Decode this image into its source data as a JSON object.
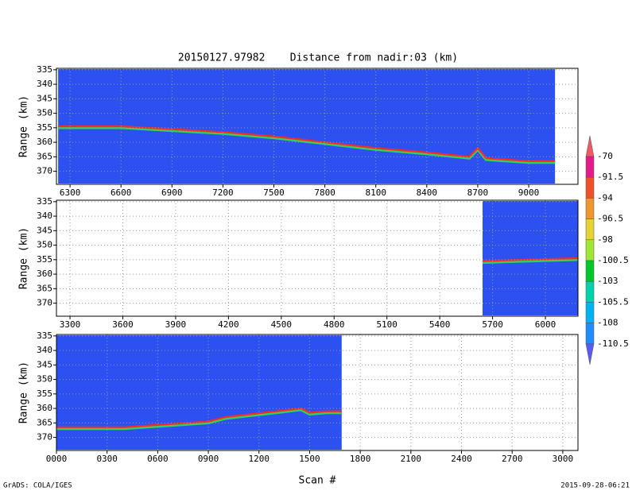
{
  "header": {
    "title": "20150127.97982    Distance from nadir:03 (km)"
  },
  "footer": {
    "credit": "GrADS: COLA/IGES",
    "timestamp": "2015-09-28-06:21"
  },
  "colorbar": {
    "levels": [
      -70,
      -91.5,
      -94,
      -96.5,
      -98,
      -100.5,
      -103,
      -105.5,
      -108,
      -110.5
    ],
    "colors": [
      "#f05a64",
      "#e6198c",
      "#f05028",
      "#f0962d",
      "#e6d232",
      "#a0e632",
      "#00c828",
      "#00d2aa",
      "#00b4f0",
      "#1e8cff",
      "#5a5af5"
    ]
  },
  "chart_data": [
    {
      "type": "line",
      "y_label": "Range (km)",
      "background": "#2d50f0",
      "color": "#ff2828",
      "grid": true,
      "xlim": [
        6220,
        9290
      ],
      "xticks": [
        6300,
        6600,
        6900,
        7200,
        7500,
        7800,
        8100,
        8400,
        8700,
        9000
      ],
      "ylim": [
        374.5,
        334.5
      ],
      "yticks": [
        335,
        340,
        345,
        350,
        355,
        360,
        365,
        370
      ],
      "x": [
        6230,
        6600,
        6900,
        7200,
        7500,
        7800,
        8100,
        8400,
        8650,
        8700,
        8750,
        9000,
        9155
      ],
      "values": [
        354.5,
        354.5,
        355.5,
        356.5,
        358,
        360,
        362,
        363.5,
        365,
        362,
        365.5,
        366.5,
        366.5
      ]
    },
    {
      "type": "line",
      "y_label": "Range (km)",
      "background": "#2d50f0",
      "color": "#ff2828",
      "grid": true,
      "xlim": [
        3223,
        6185
      ],
      "xticks": [
        3300,
        3600,
        3900,
        4200,
        4500,
        4800,
        5100,
        5400,
        5700,
        6000
      ],
      "ylim": [
        374.5,
        334.5
      ],
      "yticks": [
        335,
        340,
        345,
        350,
        355,
        360,
        365,
        370
      ],
      "x": [
        5643,
        5900,
        6185
      ],
      "values": [
        355.5,
        355,
        354.5
      ]
    },
    {
      "type": "line",
      "y_label": "Range (km)",
      "x_label": "Scan #",
      "background": "#2d50f0",
      "color": "#ff2828",
      "grid": true,
      "xlim": [
        0,
        3090
      ],
      "xticks": [
        {
          "value": 0,
          "label": "0000"
        },
        {
          "value": 300,
          "label": "0300"
        },
        {
          "value": 600,
          "label": "0600"
        },
        {
          "value": 900,
          "label": "0900"
        },
        1200,
        1500,
        1800,
        2100,
        2400,
        2700,
        3000
      ],
      "ylim": [
        374.5,
        334.5
      ],
      "yticks": [
        335,
        340,
        345,
        350,
        355,
        360,
        365,
        370
      ],
      "x": [
        0,
        400,
        900,
        1000,
        1300,
        1450,
        1500,
        1600,
        1690
      ],
      "values": [
        366.5,
        366.5,
        364.5,
        363,
        361,
        360,
        361.5,
        361,
        361
      ]
    }
  ]
}
